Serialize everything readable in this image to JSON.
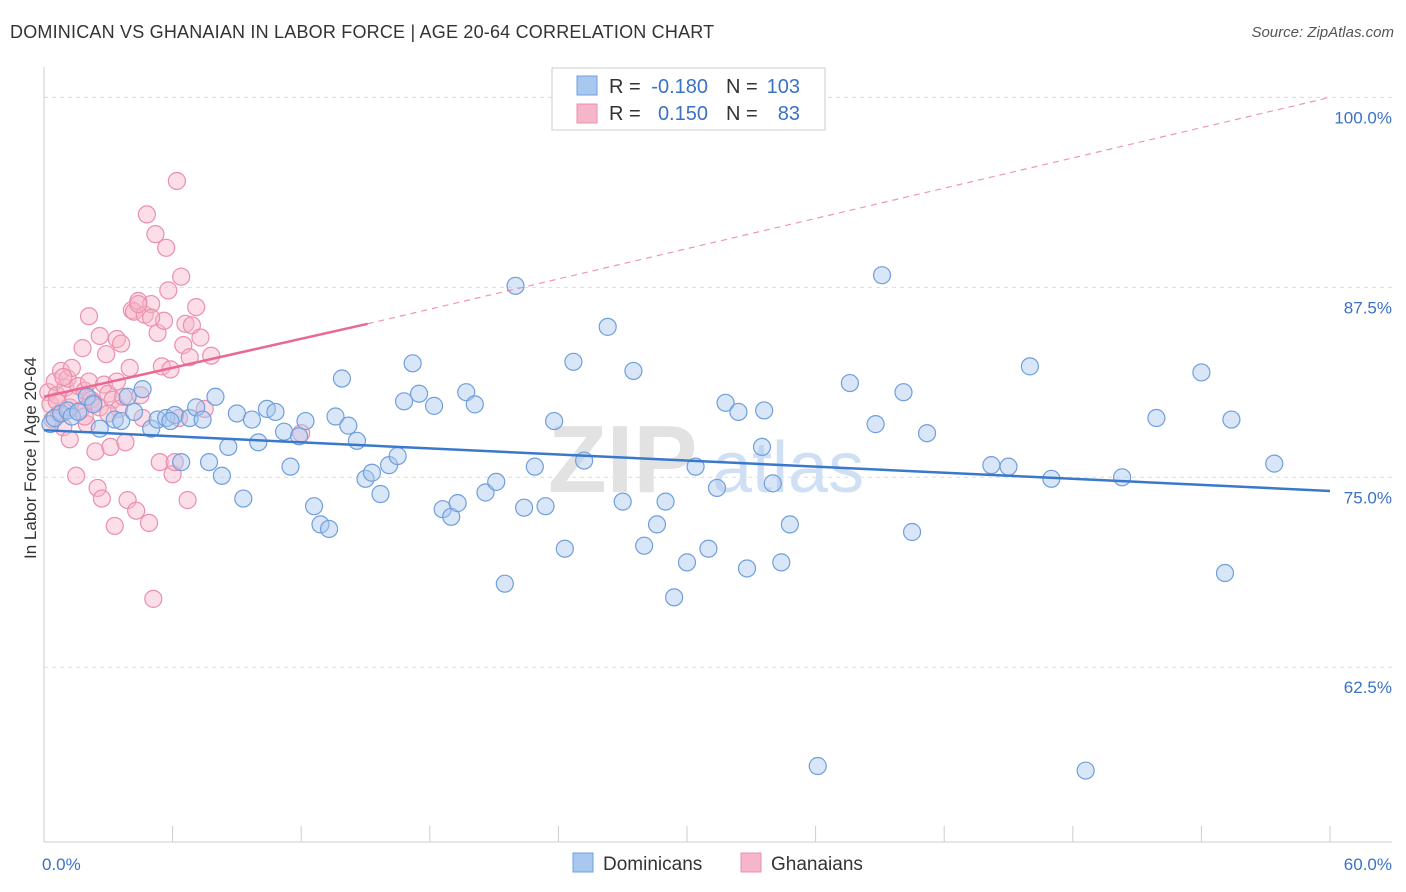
{
  "title": "DOMINICAN VS GHANAIAN IN LABOR FORCE | AGE 20-64 CORRELATION CHART",
  "source": "Source: ZipAtlas.com",
  "watermark": {
    "zip": "ZIP",
    "atlas": "atlas"
  },
  "colors": {
    "blue_fill": "#a9c8ef",
    "blue_stroke": "#6f9fdc",
    "blue_line": "#3a78cc",
    "pink_fill": "#f6b6ca",
    "pink_stroke": "#ec8fac",
    "pink_line": "#e86a93",
    "axis_text": "#3a72c4",
    "grid": "#dddddd"
  },
  "legend": {
    "rows": [
      {
        "r_label": "R =",
        "r_value": "-0.180",
        "n_label": "N =",
        "n_value": "103"
      },
      {
        "r_label": "R =",
        "r_value": "0.150",
        "n_label": "N =",
        "n_value": "83"
      }
    ]
  },
  "chart_data": {
    "type": "scatter",
    "title": "DOMINICAN VS GHANAIAN IN LABOR FORCE | AGE 20-64 CORRELATION CHART",
    "xlabel": "",
    "ylabel": "In Labor Force | Age 20-64",
    "xlim": [
      0,
      60
    ],
    "ylim": [
      51,
      102
    ],
    "x_tick_labels": [
      "0.0%",
      "60.0%"
    ],
    "y_ticks": [
      62.5,
      75.0,
      87.5,
      100.0
    ],
    "y_tick_labels": [
      "62.5%",
      "75.0%",
      "87.5%",
      "100.0%"
    ],
    "grid": true,
    "legend_position": "top-center",
    "series": [
      {
        "name": "Dominicans",
        "color": "#a9c8ef",
        "r": -0.18,
        "n": 103,
        "trend": {
          "x0": 0,
          "y0": 78.1,
          "x1": 60,
          "y1": 74.1
        },
        "points": [
          [
            0.3,
            78.5
          ],
          [
            0.5,
            78.9
          ],
          [
            0.8,
            79.2
          ],
          [
            1.1,
            79.4
          ],
          [
            1.3,
            79.0
          ],
          [
            1.6,
            79.3
          ],
          [
            2.0,
            80.3
          ],
          [
            2.3,
            79.8
          ],
          [
            2.6,
            78.2
          ],
          [
            3.3,
            78.8
          ],
          [
            3.6,
            78.7
          ],
          [
            3.9,
            80.3
          ],
          [
            4.2,
            79.3
          ],
          [
            4.6,
            80.8
          ],
          [
            5.0,
            78.2
          ],
          [
            5.3,
            78.8
          ],
          [
            5.7,
            78.9
          ],
          [
            6.1,
            79.1
          ],
          [
            5.9,
            78.7
          ],
          [
            6.8,
            78.9
          ],
          [
            6.4,
            76.0
          ],
          [
            7.1,
            79.6
          ],
          [
            7.4,
            78.8
          ],
          [
            7.7,
            76.0
          ],
          [
            8.0,
            80.3
          ],
          [
            8.3,
            75.1
          ],
          [
            8.6,
            77.0
          ],
          [
            9.0,
            79.2
          ],
          [
            9.3,
            73.6
          ],
          [
            9.7,
            78.8
          ],
          [
            10.0,
            77.3
          ],
          [
            10.4,
            79.5
          ],
          [
            10.8,
            79.3
          ],
          [
            11.2,
            78.0
          ],
          [
            11.5,
            75.7
          ],
          [
            11.9,
            77.7
          ],
          [
            12.2,
            78.7
          ],
          [
            12.6,
            73.1
          ],
          [
            12.9,
            71.9
          ],
          [
            13.3,
            71.6
          ],
          [
            13.6,
            79.0
          ],
          [
            13.9,
            81.5
          ],
          [
            14.2,
            78.4
          ],
          [
            14.6,
            77.4
          ],
          [
            15.0,
            74.9
          ],
          [
            15.3,
            75.3
          ],
          [
            15.7,
            73.9
          ],
          [
            16.1,
            75.8
          ],
          [
            16.5,
            76.4
          ],
          [
            16.8,
            80.0
          ],
          [
            17.2,
            82.5
          ],
          [
            17.5,
            80.5
          ],
          [
            18.2,
            79.7
          ],
          [
            18.6,
            72.9
          ],
          [
            19.0,
            72.4
          ],
          [
            19.3,
            73.3
          ],
          [
            19.7,
            80.6
          ],
          [
            20.1,
            79.8
          ],
          [
            20.6,
            74.0
          ],
          [
            21.1,
            74.7
          ],
          [
            21.5,
            68.0
          ],
          [
            22.0,
            87.6
          ],
          [
            22.4,
            73.0
          ],
          [
            22.9,
            75.7
          ],
          [
            23.4,
            73.1
          ],
          [
            23.8,
            78.7
          ],
          [
            24.3,
            70.3
          ],
          [
            24.7,
            82.6
          ],
          [
            25.2,
            76.1
          ],
          [
            25.8,
            99.9
          ],
          [
            26.3,
            84.9
          ],
          [
            27.0,
            73.4
          ],
          [
            27.5,
            82.0
          ],
          [
            28.0,
            70.5
          ],
          [
            28.6,
            71.9
          ],
          [
            29.0,
            73.4
          ],
          [
            29.4,
            67.1
          ],
          [
            30.0,
            69.4
          ],
          [
            30.4,
            75.7
          ],
          [
            31.0,
            70.3
          ],
          [
            31.4,
            74.3
          ],
          [
            31.8,
            79.9
          ],
          [
            32.4,
            79.3
          ],
          [
            32.8,
            69.0
          ],
          [
            33.5,
            77.0
          ],
          [
            33.6,
            79.4
          ],
          [
            34.0,
            74.6
          ],
          [
            34.4,
            69.4
          ],
          [
            34.8,
            71.9
          ],
          [
            36.1,
            56.0
          ],
          [
            37.6,
            81.2
          ],
          [
            38.8,
            78.5
          ],
          [
            39.1,
            88.3
          ],
          [
            40.1,
            80.6
          ],
          [
            40.5,
            71.4
          ],
          [
            41.2,
            77.9
          ],
          [
            44.2,
            75.8
          ],
          [
            45.0,
            75.7
          ],
          [
            46.0,
            82.3
          ],
          [
            47.0,
            74.9
          ],
          [
            48.6,
            55.7
          ],
          [
            50.3,
            75.0
          ],
          [
            51.9,
            78.9
          ],
          [
            54.0,
            81.9
          ],
          [
            55.1,
            68.7
          ],
          [
            55.4,
            78.8
          ],
          [
            57.4,
            75.9
          ]
        ]
      },
      {
        "name": "Ghanaians",
        "color": "#f6b6ca",
        "r": 0.15,
        "n": 83,
        "trend": {
          "x0": 0,
          "y0": 80.3,
          "x1": 15.1,
          "y1": 85.1
        },
        "trend_extension": {
          "x0": 15.1,
          "y0": 85.1,
          "x1": 60,
          "y1": 100.0
        },
        "points": [
          [
            0.2,
            80.6
          ],
          [
            0.3,
            79.8
          ],
          [
            0.4,
            78.8
          ],
          [
            0.5,
            81.3
          ],
          [
            0.6,
            80.4
          ],
          [
            0.7,
            79.2
          ],
          [
            0.8,
            82.0
          ],
          [
            0.9,
            78.3
          ],
          [
            1.0,
            80.9
          ],
          [
            1.1,
            81.5
          ],
          [
            1.2,
            79.6
          ],
          [
            1.3,
            82.2
          ],
          [
            1.4,
            80.2
          ],
          [
            1.5,
            75.1
          ],
          [
            1.6,
            81.0
          ],
          [
            1.7,
            79.4
          ],
          [
            1.8,
            83.5
          ],
          [
            1.9,
            80.7
          ],
          [
            2.0,
            78.5
          ],
          [
            2.1,
            81.3
          ],
          [
            2.2,
            80.1
          ],
          [
            2.3,
            79.9
          ],
          [
            2.4,
            76.7
          ],
          [
            2.5,
            74.3
          ],
          [
            2.6,
            79.6
          ],
          [
            2.7,
            73.6
          ],
          [
            2.8,
            81.1
          ],
          [
            2.9,
            83.1
          ],
          [
            3.0,
            80.5
          ],
          [
            3.1,
            77.0
          ],
          [
            3.2,
            80.1
          ],
          [
            3.3,
            71.8
          ],
          [
            3.4,
            84.1
          ],
          [
            3.5,
            79.5
          ],
          [
            3.6,
            83.8
          ],
          [
            3.7,
            80.3
          ],
          [
            3.8,
            77.3
          ],
          [
            3.9,
            73.5
          ],
          [
            4.0,
            82.2
          ],
          [
            4.1,
            86.0
          ],
          [
            4.2,
            85.9
          ],
          [
            4.3,
            72.8
          ],
          [
            4.4,
            86.6
          ],
          [
            4.5,
            80.4
          ],
          [
            4.6,
            78.9
          ],
          [
            4.7,
            85.7
          ],
          [
            4.8,
            92.3
          ],
          [
            4.9,
            72.0
          ],
          [
            5.0,
            86.4
          ],
          [
            5.1,
            67.0
          ],
          [
            5.2,
            91.0
          ],
          [
            5.3,
            84.5
          ],
          [
            5.4,
            76.0
          ],
          [
            5.5,
            82.3
          ],
          [
            5.6,
            85.3
          ],
          [
            5.7,
            90.1
          ],
          [
            5.8,
            87.3
          ],
          [
            5.9,
            82.1
          ],
          [
            6.0,
            75.2
          ],
          [
            6.1,
            76.0
          ],
          [
            6.2,
            94.5
          ],
          [
            6.3,
            78.9
          ],
          [
            6.4,
            88.2
          ],
          [
            6.5,
            83.7
          ],
          [
            6.6,
            85.1
          ],
          [
            6.7,
            73.5
          ],
          [
            6.9,
            85.0
          ],
          [
            7.1,
            86.2
          ],
          [
            7.3,
            84.2
          ],
          [
            7.5,
            79.5
          ],
          [
            7.8,
            83.0
          ],
          [
            2.1,
            85.6
          ],
          [
            3.4,
            81.3
          ],
          [
            1.9,
            79.0
          ],
          [
            0.9,
            81.6
          ],
          [
            2.6,
            84.3
          ],
          [
            4.4,
            86.4
          ],
          [
            5.0,
            85.5
          ],
          [
            6.8,
            82.9
          ],
          [
            12.0,
            77.9
          ],
          [
            1.2,
            77.5
          ],
          [
            3.0,
            79.2
          ],
          [
            0.6,
            80.0
          ]
        ]
      }
    ]
  }
}
